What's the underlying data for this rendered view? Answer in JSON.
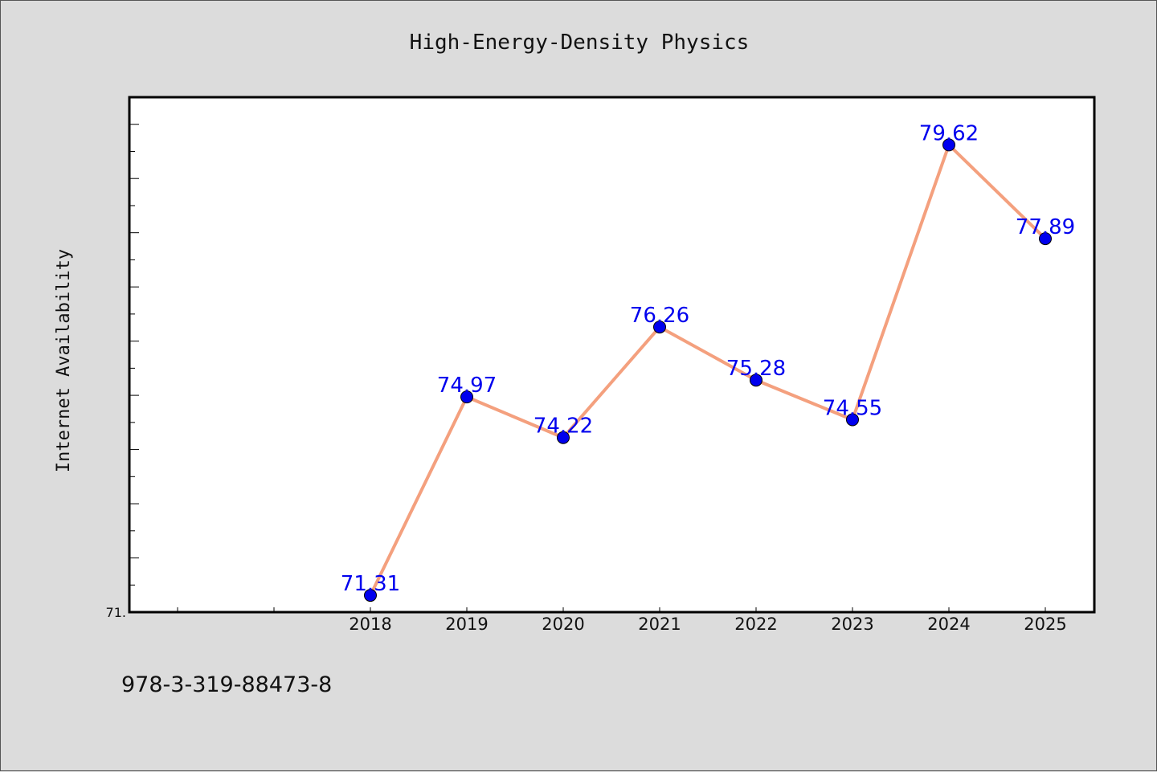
{
  "footer": {
    "isbn": "978-3-319-88473-8"
  },
  "colors": {
    "background": "#dcdcdc",
    "plot_background": "#ffffff",
    "line": "#f4a07e",
    "marker": "#0000ee",
    "data_label": "#0000ee"
  },
  "chart_data": {
    "type": "line",
    "title": "High-Energy-Density Physics",
    "ylabel": "Internet Availability",
    "xlabel": "",
    "categories": [
      "2018",
      "2019",
      "2020",
      "2021",
      "2022",
      "2023",
      "2024",
      "2025"
    ],
    "series": [
      {
        "values": [
          71.31,
          74.97,
          74.22,
          76.26,
          75.28,
          74.55,
          79.62,
          77.89
        ]
      }
    ],
    "data_labels": [
      "71.31",
      "74.97",
      "74.22",
      "76.26",
      "75.28",
      "74.55",
      "79.62",
      "77.89"
    ],
    "y_tick_label": "71.",
    "ylim": [
      71.0,
      80.5
    ],
    "x_start": 2015.5,
    "grid": false,
    "legend": "none"
  }
}
